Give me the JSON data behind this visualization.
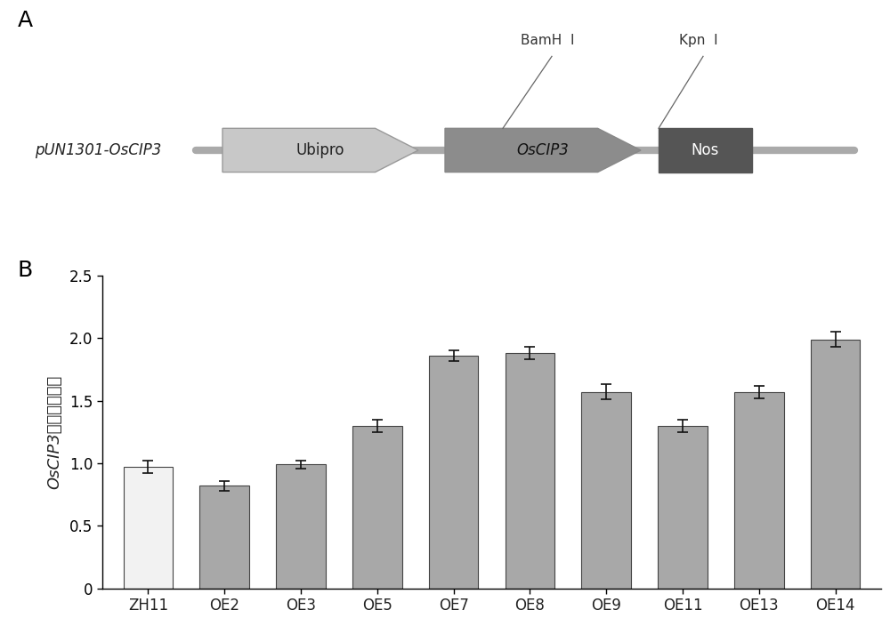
{
  "panel_a_label": "A",
  "panel_b_label": "B",
  "construct_label": "pUN1301-OsCIP3",
  "ubipro_label": "Ubipro",
  "oscip3_label": "OsCIP3",
  "nos_label": "Nos",
  "bamhi_label": "BamH  I",
  "kpni_label": "Kpn  I",
  "bar_categories": [
    "ZH11",
    "OE2",
    "OE3",
    "OE5",
    "OE7",
    "OE8",
    "OE9",
    "OE11",
    "OE13",
    "OE14"
  ],
  "bar_values": [
    0.97,
    0.82,
    0.99,
    1.3,
    1.86,
    1.88,
    1.57,
    1.3,
    1.57,
    1.99
  ],
  "bar_errors": [
    0.05,
    0.04,
    0.03,
    0.05,
    0.04,
    0.05,
    0.06,
    0.05,
    0.05,
    0.06
  ],
  "bar_colors": [
    "#f2f2f2",
    "#a8a8a8",
    "#a8a8a8",
    "#a8a8a8",
    "#a8a8a8",
    "#a8a8a8",
    "#a8a8a8",
    "#a8a8a8",
    "#a8a8a8",
    "#a8a8a8"
  ],
  "bar_edgecolor": "#444444",
  "ylabel_chinese": "OsCIP3的相对表达量",
  "ylim": [
    0,
    2.5
  ],
  "yticks": [
    0,
    0.5,
    1.0,
    1.5,
    2.0,
    2.5
  ],
  "background_color": "#ffffff",
  "ubipro_color": "#c8c8c8",
  "oscip3_color": "#8c8c8c",
  "nos_color": "#555555",
  "backbone_color": "#aaaaaa",
  "line_color": "#888888",
  "text_color": "#333333",
  "annotation_line_color": "#666666"
}
